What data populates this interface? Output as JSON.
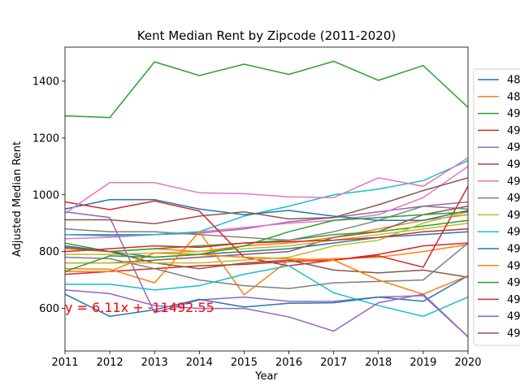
{
  "chart_data": {
    "type": "line",
    "title": "Kent Median Rent by Zipcode (2011-2020)",
    "xlabel": "Year",
    "ylabel": "Adjusted Median Rent",
    "x": [
      2011,
      2012,
      2013,
      2014,
      2015,
      2016,
      2017,
      2018,
      2019,
      2020
    ],
    "x_ticks": [
      "2011",
      "2012",
      "2013",
      "2014",
      "2015",
      "2016",
      "2017",
      "2018",
      "2019",
      "2020"
    ],
    "y_ticks": [
      "600",
      "800",
      "1000",
      "1200",
      "1400"
    ],
    "xlim": [
      2011,
      2020
    ],
    "ylim": [
      450,
      1520
    ],
    "grid": false,
    "legend_position": "right",
    "annotation": "y = 6.11x + -11492.55",
    "series": [
      {
        "name": "48",
        "color": "#1f77b4",
        "values": [
          950,
          983,
          983,
          950,
          930,
          945,
          925,
          910,
          910,
          945
        ]
      },
      {
        "name": "48",
        "color": "#ff7f0e",
        "values": [
          740,
          738,
          690,
          870,
          648,
          770,
          775,
          780,
          800,
          825
        ]
      },
      {
        "name": "49",
        "color": "#2ca02c",
        "values": [
          1278,
          1272,
          1468,
          1420,
          1460,
          1424,
          1470,
          1403,
          1455,
          1308
        ]
      },
      {
        "name": "49",
        "color": "#d62728",
        "values": [
          975,
          948,
          978,
          943,
          780,
          750,
          770,
          785,
          745,
          1030
        ]
      },
      {
        "name": "49",
        "color": "#9467bd",
        "values": [
          940,
          920,
          585,
          630,
          640,
          625,
          625,
          640,
          645,
          500
        ]
      },
      {
        "name": "49",
        "color": "#8c564b",
        "values": [
          815,
          800,
          760,
          740,
          760,
          770,
          735,
          725,
          735,
          710
        ]
      },
      {
        "name": "49",
        "color": "#e377c2",
        "values": [
          935,
          1043,
          1043,
          1007,
          1004,
          993,
          990,
          1060,
          1030,
          1130
        ]
      },
      {
        "name": "49",
        "color": "#7f7f7f",
        "values": [
          780,
          775,
          740,
          700,
          680,
          670,
          690,
          695,
          700,
          830
        ]
      },
      {
        "name": "49",
        "color": "#bcbd22",
        "values": [
          760,
          760,
          760,
          760,
          770,
          780,
          820,
          840,
          900,
          940
        ]
      },
      {
        "name": "49",
        "color": "#17becf",
        "values": [
          685,
          685,
          665,
          680,
          720,
          750,
          655,
          610,
          572,
          640
        ]
      },
      {
        "name": "49",
        "color": "#1f77b4",
        "values": [
          650,
          572,
          595,
          632,
          605,
          618,
          620,
          640,
          625,
          715
        ]
      },
      {
        "name": "49",
        "color": "#ff7f0e",
        "values": [
          730,
          730,
          795,
          790,
          780,
          775,
          770,
          700,
          650,
          715
        ]
      },
      {
        "name": "49",
        "color": "#2ca02c",
        "values": [
          730,
          785,
          780,
          790,
          820,
          870,
          910,
          920,
          930,
          940
        ]
      },
      {
        "name": "49",
        "color": "#d62728",
        "values": [
          800,
          810,
          820,
          815,
          830,
          835,
          840,
          850,
          870,
          880
        ]
      },
      {
        "name": "49",
        "color": "#9467bd",
        "values": [
          665,
          652,
          610,
          600,
          600,
          570,
          520,
          620,
          650,
          500
        ]
      },
      {
        "name": "49",
        "color": "#8c564b",
        "values": [
          912,
          912,
          898,
          925,
          940,
          915,
          920,
          965,
          1015,
          1060
        ]
      }
    ],
    "background_series": [
      {
        "color": "#1f77b4",
        "values": [
          820,
          800,
          780,
          790,
          800,
          810,
          830,
          850,
          860,
          870
        ]
      },
      {
        "color": "#ff7f0e",
        "values": [
          810,
          800,
          810,
          800,
          820,
          830,
          850,
          880,
          910,
          930
        ]
      },
      {
        "color": "#2ca02c",
        "values": [
          830,
          800,
          810,
          820,
          830,
          840,
          860,
          870,
          890,
          910
        ]
      },
      {
        "color": "#9467bd",
        "values": [
          860,
          860,
          860,
          865,
          880,
          905,
          920,
          940,
          960,
          975
        ]
      },
      {
        "color": "#e377c2",
        "values": [
          845,
          850,
          860,
          870,
          885,
          900,
          910,
          930,
          990,
          1100
        ]
      },
      {
        "color": "#7f7f7f",
        "values": [
          880,
          870,
          870,
          860,
          850,
          840,
          870,
          910,
          960,
          950
        ]
      },
      {
        "color": "#17becf",
        "values": [
          860,
          855,
          860,
          870,
          925,
          960,
          1000,
          1020,
          1050,
          1120
        ]
      },
      {
        "color": "#8c564b",
        "values": [
          760,
          760,
          770,
          780,
          790,
          800,
          850,
          870,
          930,
          960
        ]
      },
      {
        "color": "#d62728",
        "values": [
          720,
          730,
          740,
          750,
          755,
          765,
          770,
          790,
          820,
          830
        ]
      },
      {
        "color": "#bcbd22",
        "values": [
          790,
          790,
          795,
          800,
          810,
          820,
          840,
          860,
          880,
          900
        ]
      }
    ]
  }
}
